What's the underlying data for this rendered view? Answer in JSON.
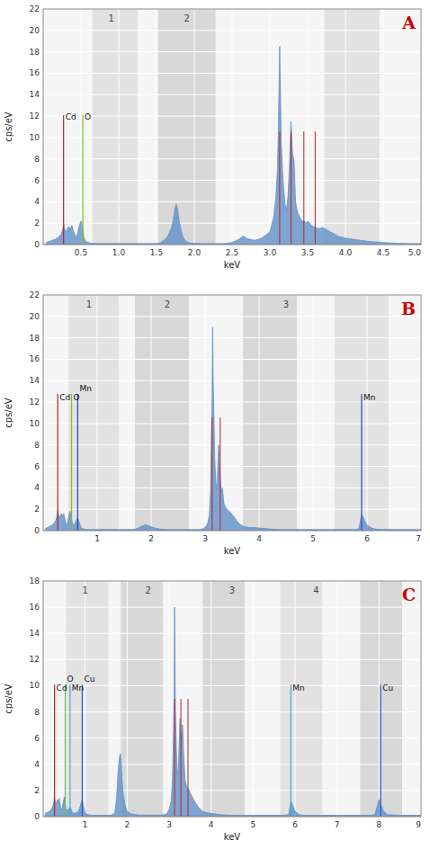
{
  "chart_data": [
    {
      "type": "area",
      "title": "A",
      "x_label": "keV",
      "y_label": "cps/eV",
      "color": "#6090c8",
      "grid": true,
      "xlim": [
        0,
        5.0
      ],
      "ylim": [
        0,
        22
      ],
      "yticks": [
        0,
        2,
        4,
        6,
        8,
        10,
        12,
        14,
        16,
        18,
        20,
        22
      ],
      "xticks": [
        0.5,
        {
          "value": 1.0,
          "label": "1.0"
        },
        1.5,
        {
          "value": 2.0,
          "label": "2.0"
        },
        2.5,
        {
          "value": 3.0,
          "label": "3.0"
        },
        3.5,
        {
          "value": 4.0,
          "label": "4.0"
        },
        4.5,
        {
          "value": 5.0,
          "label": "5.0"
        }
      ],
      "noise": 0.1,
      "band_labels": [
        {
          "x": 0.9,
          "text": "1"
        },
        {
          "x": 1.9,
          "text": "2"
        }
      ],
      "bands": [
        {
          "xmin": 0.65,
          "xmax": 1.25,
          "color": "#e2e2e2"
        },
        {
          "xmin": 1.52,
          "xmax": 2.28,
          "color": "#d8d8d8"
        },
        {
          "xmin": 3.72,
          "xmax": 4.45,
          "color": "#e2e2e2"
        }
      ],
      "annotations": [
        {
          "text": "Cd",
          "x": 0.27,
          "y": 11.5,
          "line_top": 12.1,
          "color": "#bb2222"
        },
        {
          "text": "O",
          "x": 0.525,
          "y": 11.5,
          "line_top": 12.1,
          "color": "#88bb22"
        }
      ],
      "markers": [
        {
          "x": 3.13,
          "top": 10.56,
          "color": "#bb2222"
        },
        {
          "x": 3.28,
          "top": 10.56,
          "color": "#bb2222"
        },
        {
          "x": 3.45,
          "top": 10.56,
          "color": "#bb2222"
        },
        {
          "x": 3.6,
          "top": 10.56,
          "color": "#bb2222"
        }
      ],
      "x": [
        0.04,
        0.08,
        0.12,
        0.16,
        0.2,
        0.24,
        0.26,
        0.27,
        0.28,
        0.3,
        0.32,
        0.34,
        0.36,
        0.38,
        0.4,
        0.42,
        0.44,
        0.46,
        0.48,
        0.5,
        0.52,
        0.54,
        0.56,
        0.58,
        0.6,
        0.62,
        0.65,
        0.7,
        0.75,
        0.8,
        0.9,
        1.0,
        1.1,
        1.2,
        1.3,
        1.4,
        1.5,
        1.55,
        1.6,
        1.65,
        1.7,
        1.72,
        1.74,
        1.76,
        1.78,
        1.8,
        1.82,
        1.84,
        1.86,
        1.88,
        1.9,
        1.95,
        2.0,
        2.1,
        2.2,
        2.3,
        2.4,
        2.5,
        2.55,
        2.6,
        2.65,
        2.7,
        2.8,
        2.85,
        2.9,
        2.95,
        3.0,
        3.05,
        3.08,
        3.1,
        3.11,
        3.12,
        3.13,
        3.14,
        3.15,
        3.17,
        3.18,
        3.2,
        3.22,
        3.24,
        3.26,
        3.28,
        3.3,
        3.32,
        3.34,
        3.36,
        3.38,
        3.4,
        3.42,
        3.44,
        3.46,
        3.48,
        3.5,
        3.55,
        3.6,
        3.65,
        3.7,
        3.75,
        3.8,
        3.85,
        3.9,
        4.0,
        4.1,
        4.2,
        4.3,
        4.4,
        4.5,
        4.6,
        4.7,
        4.8,
        4.9,
        5.0
      ],
      "values": [
        0.2,
        0.3,
        0.4,
        0.5,
        0.7,
        1.0,
        1.5,
        1.9,
        1.6,
        1.1,
        1.5,
        1.7,
        1.4,
        1.8,
        1.3,
        0.9,
        0.7,
        1.2,
        1.8,
        2.2,
        1.7,
        0.6,
        0.3,
        0.25,
        0.2,
        0.15,
        0.12,
        0.1,
        0.1,
        0.1,
        0.1,
        0.1,
        0.1,
        0.1,
        0.1,
        0.1,
        0.1,
        0.15,
        0.4,
        0.8,
        1.6,
        2.2,
        3.2,
        3.8,
        3.2,
        2.2,
        1.5,
        0.9,
        0.6,
        0.4,
        0.25,
        0.15,
        0.12,
        0.1,
        0.1,
        0.1,
        0.1,
        0.2,
        0.35,
        0.55,
        0.8,
        0.55,
        0.4,
        0.5,
        0.65,
        0.9,
        1.2,
        2.5,
        4.5,
        7.0,
        10.0,
        14.0,
        18.5,
        14.5,
        9.5,
        6.5,
        5.5,
        3.8,
        3.2,
        4.5,
        7.5,
        11.5,
        8.5,
        7.8,
        4.0,
        3.2,
        2.8,
        2.5,
        2.3,
        2.1,
        2.2,
        2.0,
        2.2,
        1.8,
        1.6,
        1.5,
        1.6,
        1.4,
        1.2,
        1.0,
        0.8,
        0.6,
        0.5,
        0.4,
        0.3,
        0.25,
        0.2,
        0.15,
        0.12,
        0.1,
        0.1,
        0.1
      ]
    },
    {
      "type": "area",
      "title": "B",
      "x_label": "keV",
      "y_label": "cps/eV",
      "color": "#6090c8",
      "grid": true,
      "xlim": [
        0,
        7.0
      ],
      "ylim": [
        0,
        22
      ],
      "yticks": [
        0,
        2,
        4,
        6,
        8,
        10,
        12,
        14,
        16,
        18,
        20,
        22
      ],
      "xticks": [
        1,
        2,
        3,
        4,
        5,
        6,
        7
      ],
      "noise": 0.1,
      "band_labels": [
        {
          "x": 0.85,
          "text": "1"
        },
        {
          "x": 2.3,
          "text": "2"
        },
        {
          "x": 4.5,
          "text": "3"
        }
      ],
      "bands": [
        {
          "xmin": 0.47,
          "xmax": 1.4,
          "color": "#e2e2e2"
        },
        {
          "xmin": 1.7,
          "xmax": 2.7,
          "color": "#d8d8d8"
        },
        {
          "xmin": 3.7,
          "xmax": 4.7,
          "color": "#d8d8d8"
        },
        {
          "xmin": 5.4,
          "xmax": 6.4,
          "color": "#e2e2e2"
        }
      ],
      "annotations": [
        {
          "text": "Cd",
          "x": 0.27,
          "y": 12.0,
          "line_top": 12.76,
          "color": "#bb2222"
        },
        {
          "text": "O",
          "x": 0.525,
          "y": 12.0,
          "line_top": 12.76,
          "color": "#88bb22"
        },
        {
          "text": "Mn",
          "x": 0.64,
          "y": 12.0,
          "line_top": 12.76,
          "color": "#2244bb"
        },
        {
          "text": "Mn",
          "x": 5.9,
          "y": 12.0,
          "line_top": 12.76,
          "color": "#3344cc"
        }
      ],
      "markers": [
        {
          "x": 3.13,
          "top": 10.56,
          "color": "#bb2222"
        },
        {
          "x": 3.28,
          "top": 10.56,
          "color": "#bb2222"
        }
      ],
      "x": [
        0.04,
        0.08,
        0.12,
        0.16,
        0.2,
        0.24,
        0.26,
        0.27,
        0.28,
        0.3,
        0.32,
        0.34,
        0.36,
        0.38,
        0.4,
        0.42,
        0.44,
        0.46,
        0.48,
        0.5,
        0.52,
        0.54,
        0.56,
        0.58,
        0.6,
        0.62,
        0.64,
        0.66,
        0.68,
        0.7,
        0.75,
        0.8,
        0.9,
        1.0,
        1.1,
        1.2,
        1.3,
        1.4,
        1.5,
        1.6,
        1.7,
        1.75,
        1.8,
        1.9,
        2.0,
        2.1,
        2.2,
        2.3,
        2.4,
        2.5,
        2.6,
        2.7,
        2.8,
        2.9,
        2.95,
        3.0,
        3.05,
        3.08,
        3.1,
        3.11,
        3.12,
        3.13,
        3.14,
        3.15,
        3.17,
        3.18,
        3.2,
        3.22,
        3.25,
        3.28,
        3.3,
        3.32,
        3.35,
        3.4,
        3.45,
        3.5,
        3.55,
        3.6,
        3.7,
        3.8,
        3.9,
        4.0,
        4.1,
        4.2,
        4.3,
        4.4,
        4.5,
        4.6,
        4.7,
        4.8,
        5.0,
        5.2,
        5.5,
        5.8,
        5.85,
        5.9,
        5.95,
        6.0,
        6.1,
        6.2,
        6.5,
        6.8,
        7.0
      ],
      "values": [
        0.2,
        0.3,
        0.4,
        0.5,
        0.7,
        1.0,
        1.5,
        1.9,
        1.6,
        1.1,
        1.4,
        1.6,
        1.3,
        1.6,
        1.1,
        0.7,
        0.5,
        0.9,
        1.5,
        1.8,
        1.3,
        0.7,
        0.5,
        0.6,
        0.8,
        1.0,
        1.2,
        0.9,
        0.6,
        0.3,
        0.15,
        0.1,
        0.1,
        0.1,
        0.1,
        0.1,
        0.1,
        0.1,
        0.1,
        0.1,
        0.12,
        0.2,
        0.35,
        0.55,
        0.35,
        0.2,
        0.12,
        0.1,
        0.1,
        0.1,
        0.1,
        0.1,
        0.1,
        0.1,
        0.15,
        0.3,
        0.7,
        1.5,
        3.5,
        6.5,
        9.5,
        12.5,
        19.0,
        14.0,
        9.0,
        6.5,
        4.5,
        3.8,
        8.0,
        5.0,
        3.5,
        4.0,
        2.5,
        2.0,
        1.8,
        1.5,
        1.2,
        0.8,
        0.4,
        0.3,
        0.3,
        0.25,
        0.2,
        0.15,
        0.12,
        0.1,
        0.1,
        0.1,
        0.1,
        0.1,
        0.1,
        0.1,
        0.1,
        0.1,
        0.2,
        1.5,
        1.0,
        0.5,
        0.2,
        0.12,
        0.1,
        0.1,
        0.1
      ]
    },
    {
      "type": "area",
      "title": "C",
      "x_label": "keV",
      "y_label": "cps/eV",
      "color": "#6090c8",
      "grid": true,
      "xlim": [
        0,
        9.0
      ],
      "ylim": [
        0,
        18
      ],
      "yticks": [
        0,
        2,
        4,
        6,
        8,
        10,
        12,
        14,
        16,
        18
      ],
      "xticks": [
        1,
        2,
        3,
        4,
        5,
        6,
        7,
        8,
        9
      ],
      "noise": 0.1,
      "band_labels": [
        {
          "x": 1.0,
          "text": "1"
        },
        {
          "x": 2.5,
          "text": "2"
        },
        {
          "x": 4.5,
          "text": "3"
        },
        {
          "x": 6.5,
          "text": "4"
        }
      ],
      "bands": [
        {
          "xmin": 0.55,
          "xmax": 1.55,
          "color": "#e2e2e2"
        },
        {
          "xmin": 1.85,
          "xmax": 2.85,
          "color": "#d8d8d8"
        },
        {
          "xmin": 3.8,
          "xmax": 4.8,
          "color": "#d8d8d8"
        },
        {
          "xmin": 5.65,
          "xmax": 6.65,
          "color": "#e2e2e2"
        },
        {
          "xmin": 7.55,
          "xmax": 8.55,
          "color": "#d8d8d8"
        }
      ],
      "annotations": [
        {
          "text": "Cd",
          "x": 0.27,
          "y": 9.5,
          "line_top": 10.08,
          "color": "#bb2222"
        },
        {
          "text": "O",
          "x": 0.525,
          "y": 9.5,
          "line_top": 10.08,
          "color": "#66bb44"
        },
        {
          "text": "Mn",
          "x": 0.64,
          "y": 9.5,
          "line_top": 10.08,
          "color": "#44aacc"
        },
        {
          "text": "Cu",
          "x": 0.93,
          "y": 9.5,
          "line_top": 10.08,
          "color": "#3355cc"
        },
        {
          "text": "Mn",
          "x": 5.9,
          "y": 9.5,
          "line_top": 10.08,
          "color": "#44aacc"
        },
        {
          "text": "Cu",
          "x": 8.04,
          "y": 9.5,
          "line_top": 10.08,
          "color": "#3355cc"
        }
      ],
      "markers": [
        {
          "x": 3.13,
          "top": 9,
          "color": "#bb2222"
        },
        {
          "x": 3.28,
          "top": 9,
          "color": "#bb2222"
        },
        {
          "x": 3.45,
          "top": 9,
          "color": "#bb2222"
        }
      ],
      "x": [
        0.04,
        0.08,
        0.12,
        0.16,
        0.2,
        0.24,
        0.26,
        0.27,
        0.28,
        0.3,
        0.32,
        0.34,
        0.36,
        0.38,
        0.4,
        0.42,
        0.44,
        0.46,
        0.48,
        0.5,
        0.52,
        0.54,
        0.56,
        0.58,
        0.6,
        0.62,
        0.64,
        0.66,
        0.68,
        0.7,
        0.75,
        0.8,
        0.85,
        0.88,
        0.9,
        0.92,
        0.93,
        0.95,
        1.0,
        1.1,
        1.2,
        1.3,
        1.4,
        1.5,
        1.6,
        1.65,
        1.7,
        1.72,
        1.74,
        1.76,
        1.78,
        1.8,
        1.82,
        1.84,
        1.86,
        1.88,
        1.9,
        1.95,
        2.0,
        2.1,
        2.2,
        2.3,
        2.4,
        2.5,
        2.6,
        2.7,
        2.8,
        2.9,
        2.95,
        3.0,
        3.05,
        3.08,
        3.1,
        3.12,
        3.13,
        3.14,
        3.15,
        3.17,
        3.18,
        3.2,
        3.22,
        3.24,
        3.26,
        3.28,
        3.3,
        3.32,
        3.35,
        3.38,
        3.4,
        3.42,
        3.44,
        3.46,
        3.48,
        3.5,
        3.55,
        3.6,
        3.7,
        3.8,
        3.9,
        4.0,
        4.1,
        4.2,
        4.5,
        4.8,
        5.0,
        5.2,
        5.5,
        5.7,
        5.85,
        5.9,
        5.95,
        6.0,
        6.1,
        6.2,
        6.5,
        7.0,
        7.5,
        7.8,
        7.9,
        8.0,
        8.05,
        8.1,
        8.2,
        8.5,
        8.8,
        9.0
      ],
      "values": [
        0.2,
        0.3,
        0.35,
        0.45,
        0.6,
        0.9,
        1.2,
        1.6,
        1.3,
        0.9,
        1.1,
        1.3,
        1.1,
        1.4,
        1.0,
        0.7,
        0.5,
        0.8,
        1.1,
        1.5,
        1.1,
        0.6,
        0.45,
        0.5,
        0.55,
        0.65,
        0.75,
        0.6,
        0.45,
        0.3,
        0.25,
        0.3,
        0.5,
        0.75,
        1.0,
        1.2,
        1.3,
        0.9,
        0.25,
        0.12,
        0.1,
        0.1,
        0.1,
        0.1,
        0.1,
        0.15,
        0.3,
        0.6,
        1.2,
        2.0,
        3.2,
        4.0,
        4.6,
        4.8,
        4.0,
        2.8,
        1.8,
        0.9,
        0.4,
        0.2,
        0.15,
        0.12,
        0.12,
        0.12,
        0.12,
        0.12,
        0.12,
        0.15,
        0.25,
        0.55,
        1.2,
        2.8,
        5.5,
        9.0,
        16.0,
        12.0,
        8.0,
        5.5,
        4.5,
        3.2,
        3.6,
        5.5,
        7.5,
        6.5,
        5.8,
        7.0,
        4.5,
        2.8,
        2.5,
        2.3,
        2.2,
        2.1,
        2.0,
        1.8,
        1.5,
        1.2,
        0.7,
        0.4,
        0.3,
        0.25,
        0.2,
        0.15,
        0.1,
        0.1,
        0.1,
        0.1,
        0.1,
        0.1,
        0.15,
        1.2,
        0.8,
        0.4,
        0.15,
        0.1,
        0.1,
        0.1,
        0.1,
        0.1,
        0.15,
        1.3,
        0.9,
        0.45,
        0.15,
        0.1,
        0.1,
        0.1
      ]
    }
  ]
}
